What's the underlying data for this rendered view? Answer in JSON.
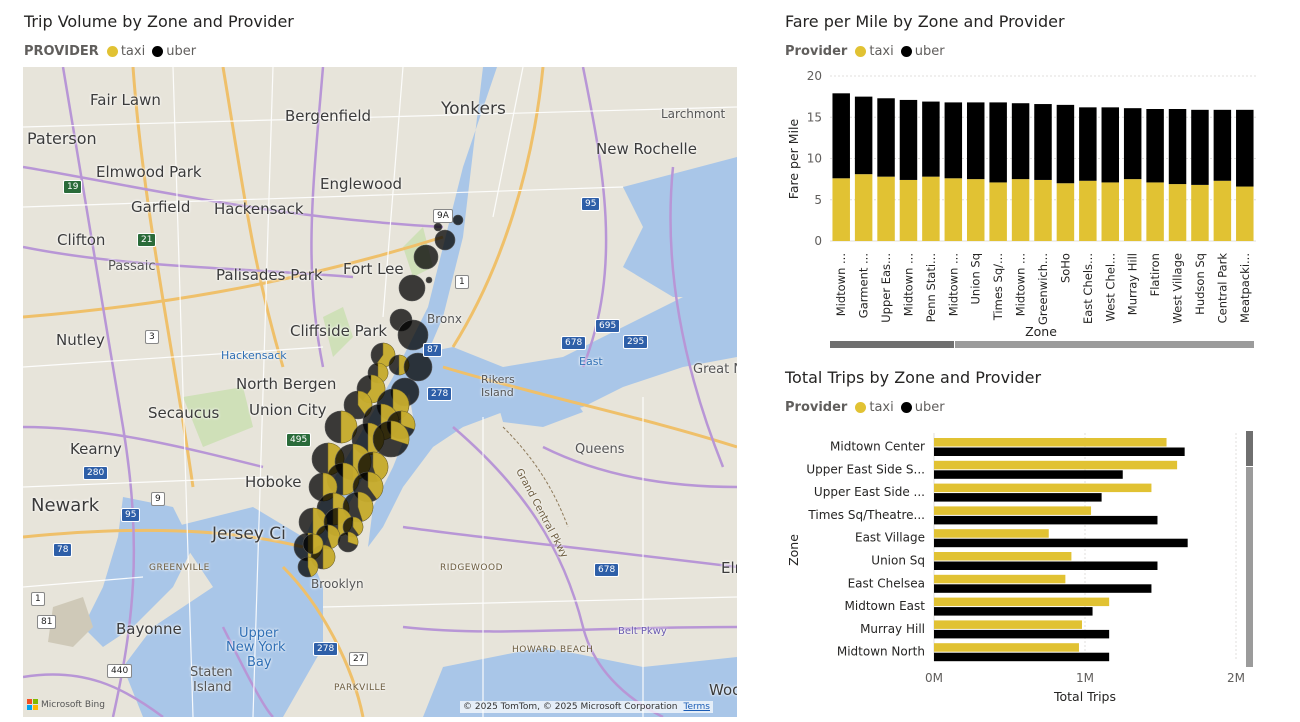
{
  "colors": {
    "taxi": "#e1c233",
    "uber": "#000000",
    "water": "#a9c6e8",
    "land": "#e7e4da",
    "road_major": "#b896d6",
    "road_minor": "#ffffff",
    "highway": "#f3c66d"
  },
  "legend": {
    "title": "PROVIDER",
    "title_case": "Provider",
    "taxi": "taxi",
    "uber": "uber"
  },
  "map": {
    "title": "Trip Volume by Zone and Provider",
    "labels": {
      "fair_lawn": "Fair Lawn",
      "bergenfield": "Bergenfield",
      "yonkers": "Yonkers",
      "larchmont": "Larchmont",
      "paterson": "Paterson",
      "elmwood_park": "Elmwood Park",
      "new_rochelle": "New Rochelle",
      "englewood": "Englewood",
      "garfield": "Garfield",
      "hackensack": "Hackensack",
      "clifton": "Clifton",
      "passaic": "Passaic",
      "palisades_park": "Palisades Park",
      "fort_lee": "Fort Lee",
      "cliffside_park": "Cliffside Park",
      "bronx": "Bronx",
      "nutley": "Nutley",
      "hackensack_river": "Hackensack",
      "north_bergen": "North Bergen",
      "great_neck": "Great N",
      "secaucus": "Secaucus",
      "union_city": "Union City",
      "rikers": "Rikers",
      "rikers2": "Island",
      "east": "East",
      "kearny": "Kearny",
      "queens": "Queens",
      "hoboken": "Hoboke",
      "newark": "Newark",
      "jersey_city": "Jersey Ci",
      "elmo": "Elmo",
      "greenville": "GREENVILLE",
      "ridgewood": "RIDGEWOOD",
      "brooklyn": "Brooklyn",
      "bayonne": "Bayonne",
      "upper_bay_1": "Upper",
      "upper_bay_2": "New York",
      "upper_bay_3": "Bay",
      "staten_1": "Staten",
      "staten_2": "Island",
      "howard_beach": "HOWARD BEACH",
      "parkville": "PARKVILLE",
      "belt_pkwy": "Belt Pkwy",
      "grand_central": "Grand Central Pkwy",
      "wood": "Woo"
    },
    "shields": [
      "19",
      "21",
      "9A",
      "95",
      "1",
      "3",
      "695",
      "87",
      "678",
      "295",
      "495",
      "278",
      "9",
      "78",
      "280",
      "1",
      "81",
      "440",
      "27",
      "278",
      "678",
      "95"
    ],
    "footer": "© 2025 TomTom, © 2025 Microsoft Corporation",
    "terms": "Terms",
    "bing": "Microsoft Bing",
    "bubbles_note": ""
  },
  "fare": {
    "title": "Fare per Mile by Zone and Provider",
    "ylabel": "Fare per Mile",
    "xlabel": "Zone",
    "yticks": [
      "0",
      "5",
      "10",
      "15",
      "20"
    ]
  },
  "trips": {
    "title": "Total Trips by Zone and Provider",
    "ylabel": "Zone",
    "xlabel": "Total Trips",
    "xticks": [
      "0M",
      "1M",
      "2M"
    ]
  },
  "chart_data": [
    {
      "type": "bar",
      "stacked": true,
      "title": "Fare per Mile by Zone and Provider",
      "xlabel": "Zone",
      "ylabel": "Fare per Mile",
      "ylim": [
        0,
        20
      ],
      "grid": true,
      "legend": "top-left",
      "categories": [
        "Midtown ...",
        "Garment ...",
        "Upper Eas...",
        "Midtown ...",
        "Penn Stati...",
        "Midtown ...",
        "Union Sq",
        "Times Sq/...",
        "Midtown ...",
        "Greenwich...",
        "SoHo",
        "East Chels...",
        "West Chel...",
        "Murray Hill",
        "Flatiron",
        "West Village",
        "Hudson Sq",
        "Central Park",
        "Meatpacki..."
      ],
      "series": [
        {
          "name": "taxi",
          "values": [
            7.6,
            8.1,
            7.8,
            7.4,
            7.8,
            7.6,
            7.5,
            7.1,
            7.5,
            7.4,
            7.0,
            7.3,
            7.1,
            7.5,
            7.1,
            6.9,
            6.8,
            7.3,
            6.6
          ]
        },
        {
          "name": "uber",
          "values": [
            10.3,
            9.4,
            9.5,
            9.7,
            9.1,
            9.2,
            9.3,
            9.7,
            9.2,
            9.2,
            9.5,
            8.9,
            9.1,
            8.6,
            8.9,
            9.1,
            9.1,
            8.6,
            9.3
          ]
        }
      ]
    },
    {
      "type": "bar",
      "orientation": "horizontal",
      "title": "Total Trips by Zone and Provider",
      "xlabel": "Total Trips",
      "ylabel": "Zone",
      "xlim": [
        0,
        2000000
      ],
      "legend": "top-left",
      "categories": [
        "Midtown Center",
        "Upper East Side S...",
        "Upper East Side ...",
        "Times Sq/Theatre...",
        "East Village",
        "Union Sq",
        "East Chelsea",
        "Midtown East",
        "Murray Hill",
        "Midtown North"
      ],
      "series": [
        {
          "name": "taxi",
          "values": [
            1540000,
            1610000,
            1440000,
            1040000,
            760000,
            910000,
            870000,
            1160000,
            980000,
            960000
          ]
        },
        {
          "name": "uber",
          "values": [
            1660000,
            1250000,
            1110000,
            1480000,
            1680000,
            1480000,
            1440000,
            1050000,
            1160000,
            1160000
          ]
        }
      ]
    }
  ]
}
